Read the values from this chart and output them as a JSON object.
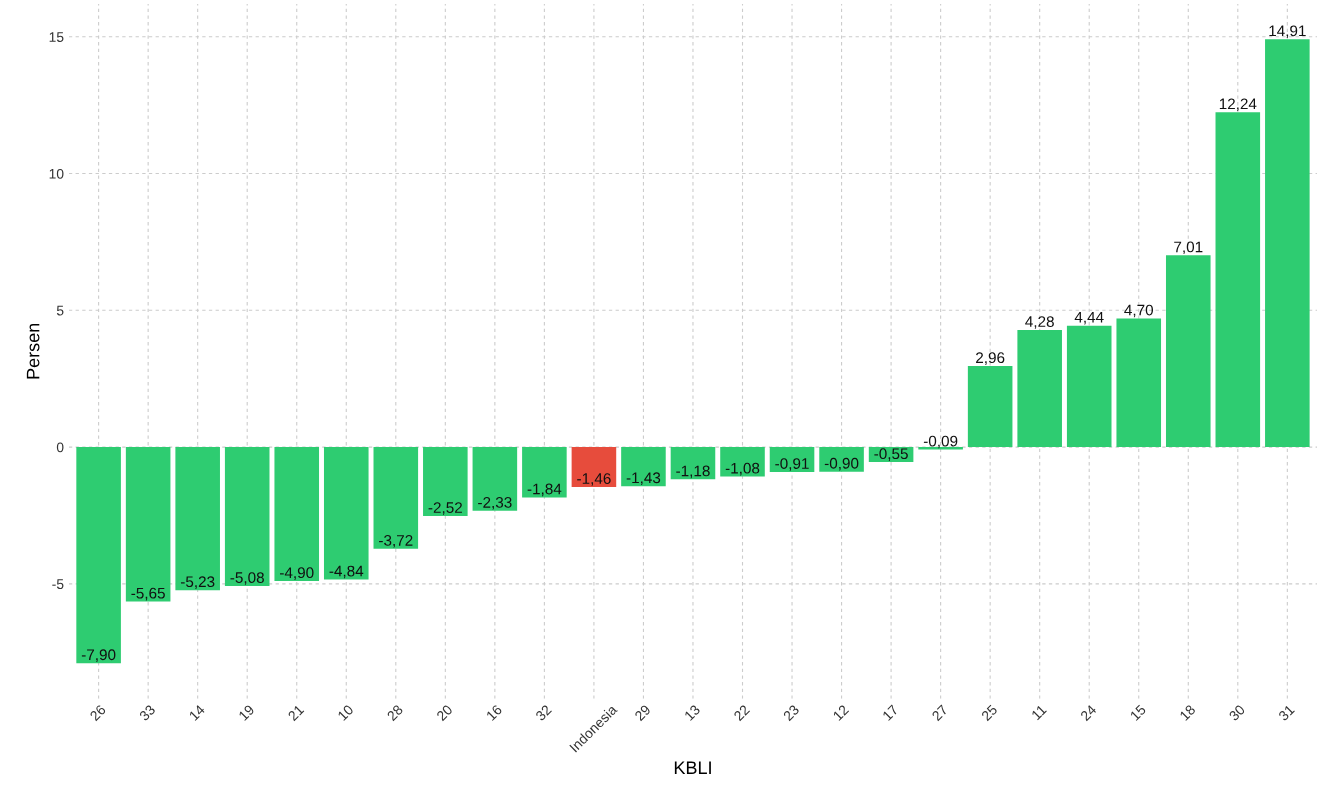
{
  "chart_data": {
    "type": "bar",
    "xlabel": "KBLI",
    "ylabel": "Persen",
    "categories": [
      "26",
      "33",
      "14",
      "19",
      "21",
      "10",
      "28",
      "20",
      "16",
      "32",
      "Indonesia",
      "29",
      "13",
      "22",
      "23",
      "12",
      "17",
      "27",
      "25",
      "11",
      "24",
      "15",
      "18",
      "30",
      "31"
    ],
    "values": [
      -7.9,
      -5.65,
      -5.23,
      -5.08,
      -4.9,
      -4.84,
      -3.72,
      -2.52,
      -2.33,
      -1.84,
      -1.46,
      -1.43,
      -1.18,
      -1.08,
      -0.91,
      -0.9,
      -0.55,
      -0.09,
      2.96,
      4.28,
      4.44,
      4.7,
      7.01,
      12.24,
      14.91
    ],
    "colors": [
      "#2ecc71",
      "#2ecc71",
      "#2ecc71",
      "#2ecc71",
      "#2ecc71",
      "#2ecc71",
      "#2ecc71",
      "#2ecc71",
      "#2ecc71",
      "#2ecc71",
      "#e74c3c",
      "#2ecc71",
      "#2ecc71",
      "#2ecc71",
      "#2ecc71",
      "#2ecc71",
      "#2ecc71",
      "#2ecc71",
      "#2ecc71",
      "#2ecc71",
      "#2ecc71",
      "#2ecc71",
      "#2ecc71",
      "#2ecc71",
      "#2ecc71"
    ],
    "value_labels": [
      "-7,90",
      "-5,65",
      "-5,23",
      "-5,08",
      "-4,90",
      "-4,84",
      "-3,72",
      "-2,52",
      "-2,33",
      "-1,84",
      "-1,46",
      "-1,43",
      "-1,18",
      "-1,08",
      "-0,91",
      "-0,90",
      "-0,55",
      "-0,09",
      "2,96",
      "4,28",
      "4,44",
      "4,70",
      "7,01",
      "12,24",
      "14,91"
    ],
    "ylim": [
      -9.2,
      16.2
    ],
    "yticks": [
      -5,
      0,
      5,
      10,
      15
    ],
    "grid": true
  }
}
